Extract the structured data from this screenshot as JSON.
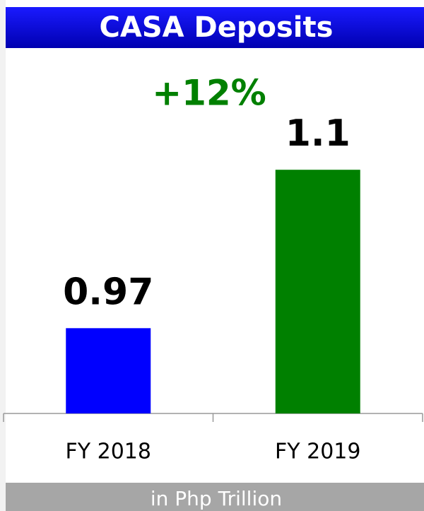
{
  "chart_data": {
    "type": "bar",
    "title": "CASA Deposits",
    "annotation": "+12%",
    "footnote": "in Php Trillion",
    "categories": [
      "FY 2018",
      "FY 2019"
    ],
    "values": [
      0.97,
      1.1
    ],
    "colors": [
      "#0000ff",
      "#008000"
    ],
    "ylim": [
      0.9,
      1.15
    ]
  }
}
